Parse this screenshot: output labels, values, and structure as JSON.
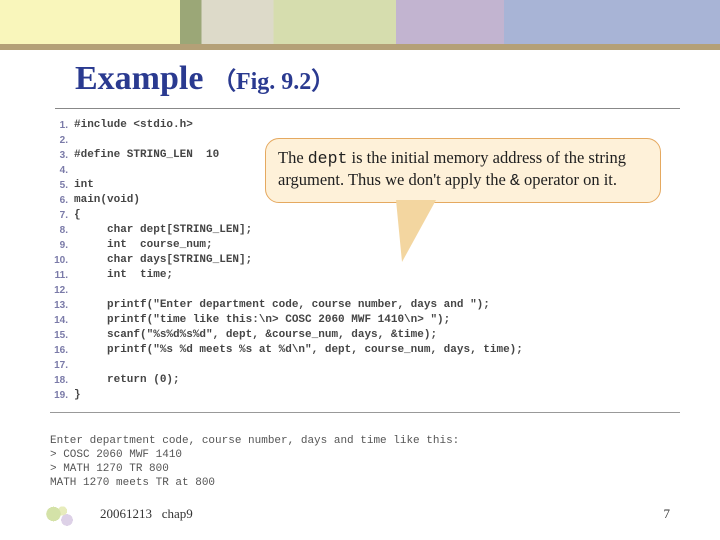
{
  "title_main": "Example",
  "title_sub": "（Fig. 9.2）",
  "callout_prefix": "The ",
  "callout_code1": "dept",
  "callout_mid": " is the initial memory address of the string argument. Thus we don't apply the ",
  "callout_code2": "&",
  "callout_suffix": " operator on it.",
  "footer_date": "20061213",
  "footer_chap": "chap9",
  "footer_page": "7",
  "code": {
    "l1": "#include <stdio.h>",
    "l2": "",
    "l3": "#define STRING_LEN  10",
    "l4": "",
    "l5": "int",
    "l6": "main(void)",
    "l7": "{",
    "l8": "     char dept[STRING_LEN];",
    "l9": "     int  course_num;",
    "l10": "     char days[STRING_LEN];",
    "l11": "     int  time;",
    "l12": "",
    "l13": "     printf(\"Enter department code, course number, days and \");",
    "l14": "     printf(\"time like this:\\n> COSC 2060 MWF 1410\\n> \");",
    "l15": "     scanf(\"%s%d%s%d\", dept, &course_num, days, &time);",
    "l16": "     printf(\"%s %d meets %s at %d\\n\", dept, course_num, days, time);",
    "l17": "",
    "l18": "     return (0);",
    "l19": "}"
  },
  "output": {
    "o1": "Enter department code, course number, days and time like this:",
    "o2": "> COSC 2060 MWF 1410",
    "o3": "> MATH 1270 TR 800",
    "o4": "MATH 1270 meets TR at 800"
  },
  "colors": {
    "title": "#2a3a90",
    "callout_bg": "#fef1d9",
    "callout_border": "#e5a960",
    "code_text": "#454545",
    "line_number": "#7a7aa8"
  },
  "background_color": "#ffffff"
}
